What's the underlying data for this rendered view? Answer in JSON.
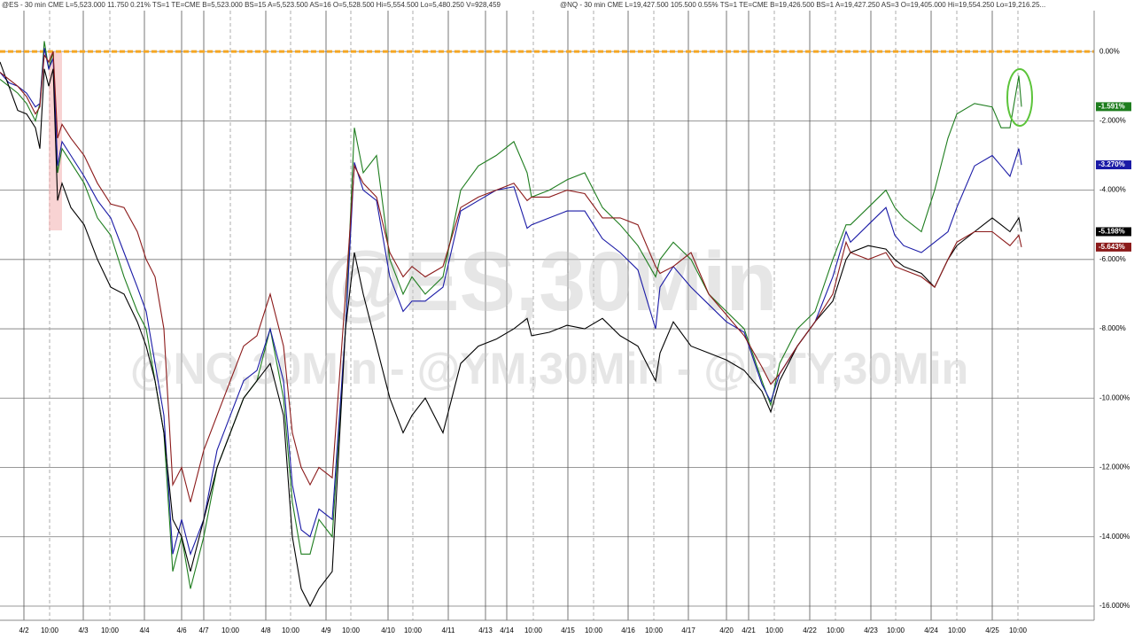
{
  "header": [
    "@ES - 30 min  CME  L=5,523.000  11.750  0.21%  TS=1  TE=CME  B=5,523.000  BS=15  A=5,523.500  AS=16  O=5,528.500  Hi=5,554.500  Lo=5,480.250  V=928,459",
    "@NQ - 30 min  CME  L=19,427.500  105.500  0.55%  TS=1  TE=CME  B=19,426.500  BS=1  A=19,427.250  AS=3  O=19,405.000  Hi=19,554.250  Lo=19,216.25..."
  ],
  "chart_data": {
    "type": "line",
    "watermarks": [
      "@ES,30Min",
      "@NQ,30Min - @YM,30Min - @RTY,30Min"
    ],
    "x": [
      0,
      10,
      20,
      30,
      40,
      45,
      50,
      55,
      60,
      65,
      70,
      80,
      95,
      110,
      125,
      140,
      155,
      165,
      175,
      185,
      195,
      205,
      215,
      230,
      245,
      260,
      275,
      290,
      305,
      320,
      330,
      340,
      350,
      360,
      375,
      390,
      400,
      410,
      425,
      440,
      455,
      465,
      480,
      500,
      520,
      540,
      560,
      580,
      595,
      600,
      620,
      640,
      660,
      680,
      700,
      720,
      740,
      745,
      760,
      780,
      800,
      820,
      840,
      860,
      870,
      880,
      900,
      920,
      940,
      955,
      960,
      980,
      1000,
      1010,
      1020,
      1040,
      1055,
      1070,
      1080,
      1100,
      1120,
      1130,
      1140,
      1150,
      1153
    ],
    "xlim": [
      0,
      1235
    ],
    "xticks": [
      {
        "value": 27,
        "label": "4/2"
      },
      {
        "value": 56,
        "label": "10:00"
      },
      {
        "value": 94,
        "label": "4/3"
      },
      {
        "value": 124,
        "label": "10:00"
      },
      {
        "value": 163,
        "label": "4/4"
      },
      {
        "value": 205,
        "label": "4/6"
      },
      {
        "value": 230,
        "label": "4/7"
      },
      {
        "value": 260,
        "label": "10:00"
      },
      {
        "value": 300,
        "label": "4/8"
      },
      {
        "value": 328,
        "label": "10:00"
      },
      {
        "value": 368,
        "label": "4/9"
      },
      {
        "value": 396,
        "label": "10:00"
      },
      {
        "value": 438,
        "label": "4/10"
      },
      {
        "value": 466,
        "label": "10:00"
      },
      {
        "value": 506,
        "label": "4/11"
      },
      {
        "value": 548,
        "label": "4/13"
      },
      {
        "value": 572,
        "label": "4/14"
      },
      {
        "value": 602,
        "label": "10:00"
      },
      {
        "value": 641,
        "label": "4/15"
      },
      {
        "value": 670,
        "label": "10:00"
      },
      {
        "value": 709,
        "label": "4/16"
      },
      {
        "value": 738,
        "label": "10:00"
      },
      {
        "value": 777,
        "label": "4/17"
      },
      {
        "value": 820,
        "label": "4/20"
      },
      {
        "value": 845,
        "label": "4/21"
      },
      {
        "value": 874,
        "label": "10:00"
      },
      {
        "value": 914,
        "label": "4/22"
      },
      {
        "value": 943,
        "label": "10:00"
      },
      {
        "value": 983,
        "label": "4/23"
      },
      {
        "value": 1011,
        "label": "10:00"
      },
      {
        "value": 1051,
        "label": "4/24"
      },
      {
        "value": 1080,
        "label": "10:00"
      },
      {
        "value": 1120,
        "label": "4/25"
      },
      {
        "value": 1149,
        "label": "10:00"
      }
    ],
    "ylim": [
      -16.41,
      1.18
    ],
    "yticks": [
      {
        "value": 0,
        "label": "0.00%"
      },
      {
        "value": -2,
        "label": "-2.000%"
      },
      {
        "value": -4,
        "label": "-4.000%"
      },
      {
        "value": -6,
        "label": "-6.000%"
      },
      {
        "value": -8,
        "label": "-8.000%"
      },
      {
        "value": -10,
        "label": "-10.000%"
      },
      {
        "value": -12,
        "label": "-12.000%"
      },
      {
        "value": -14,
        "label": "-14.000%"
      },
      {
        "value": -16,
        "label": "-16.000%"
      }
    ],
    "grid": true,
    "reference_line": {
      "value": 0,
      "color": "#f5a623"
    },
    "series": [
      {
        "color": "#1e7d1e",
        "values": [
          -0.8,
          -1.0,
          -1.2,
          -1.5,
          -2.0,
          -1.5,
          0.3,
          -0.5,
          0,
          -3.5,
          -2.8,
          -3.2,
          -3.8,
          -4.8,
          -5.3,
          -6.5,
          -7.5,
          -8.0,
          -9.5,
          -11,
          -15,
          -14,
          -15.5,
          -14,
          -12,
          -11,
          -10,
          -9.5,
          -8,
          -10,
          -13,
          -14.5,
          -14.5,
          -13.5,
          -14,
          -8,
          -2.2,
          -3.5,
          -3,
          -6,
          -7,
          -6.5,
          -7,
          -6.5,
          -4,
          -3.3,
          -3.0,
          -2.6,
          -3.5,
          -4.2,
          -4.0,
          -3.7,
          -3.5,
          -4.5,
          -5,
          -5.6,
          -6.5,
          -6,
          -5.5,
          -6,
          -7,
          -7.5,
          -8,
          -9.5,
          -10.2,
          -9,
          -8,
          -7.5,
          -6,
          -5,
          -5,
          -4.5,
          -4,
          -4.5,
          -4.8,
          -5.2,
          -4,
          -2.5,
          -1.8,
          -1.5,
          -1.6,
          -2.2,
          -2.2,
          -0.7,
          -1.591
        ],
        "value_labels": [
          null,
          null,
          null,
          null,
          null,
          null,
          null,
          null,
          null,
          null,
          null,
          null,
          null,
          null,
          null,
          null,
          null,
          null,
          null,
          null,
          null,
          null,
          null,
          null,
          null,
          null,
          null,
          null,
          null,
          null,
          null,
          null,
          null,
          null,
          null,
          null,
          null,
          null,
          null,
          null,
          null,
          null,
          null,
          null,
          null,
          null,
          null,
          null,
          null,
          null,
          null,
          null,
          null,
          null,
          null,
          null,
          null,
          null,
          null,
          null,
          null,
          null,
          null,
          null,
          null,
          null,
          null,
          null,
          null,
          null,
          null,
          null,
          null,
          null,
          null,
          null,
          null,
          null,
          null,
          null,
          null,
          null,
          null,
          null,
          "-1.591%"
        ]
      },
      {
        "color": "#1a1aa6",
        "values": [
          -0.6,
          -0.9,
          -1.0,
          -1.2,
          -1.6,
          -1.5,
          0.1,
          -0.5,
          -0.2,
          -3.3,
          -2.6,
          -3.0,
          -3.6,
          -4.3,
          -4.8,
          -5.8,
          -6.8,
          -7.5,
          -9.0,
          -10.5,
          -14.5,
          -13.5,
          -14.5,
          -13.5,
          -11.5,
          -10.5,
          -9.5,
          -9.2,
          -8.0,
          -9.5,
          -12.5,
          -13.8,
          -14.0,
          -13.2,
          -13.5,
          -8,
          -3.2,
          -4.0,
          -4.3,
          -6.5,
          -7.5,
          -7.2,
          -7.2,
          -6.8,
          -4.6,
          -4.3,
          -4.0,
          -3.9,
          -5.1,
          -5.0,
          -4.8,
          -4.6,
          -4.6,
          -5.4,
          -5.8,
          -6.3,
          -8.0,
          -6.8,
          -6.2,
          -6.8,
          -7.3,
          -7.8,
          -8.1,
          -9.6,
          -10.1,
          -9.3,
          -8.5,
          -7.8,
          -6.5,
          -5.2,
          -5.5,
          -5.0,
          -4.5,
          -5.3,
          -5.6,
          -5.8,
          -5.5,
          -5.2,
          -4.5,
          -3.3,
          -3.0,
          -3.3,
          -3.6,
          -2.8,
          -3.27
        ],
        "value_labels": [
          null,
          null,
          null,
          null,
          null,
          null,
          null,
          null,
          null,
          null,
          null,
          null,
          null,
          null,
          null,
          null,
          null,
          null,
          null,
          null,
          null,
          null,
          null,
          null,
          null,
          null,
          null,
          null,
          null,
          null,
          null,
          null,
          null,
          null,
          null,
          null,
          null,
          null,
          null,
          null,
          null,
          null,
          null,
          null,
          null,
          null,
          null,
          null,
          null,
          null,
          null,
          null,
          null,
          null,
          null,
          null,
          null,
          null,
          null,
          null,
          null,
          null,
          null,
          null,
          null,
          null,
          null,
          null,
          null,
          null,
          null,
          null,
          null,
          null,
          null,
          null,
          null,
          null,
          null,
          null,
          null,
          null,
          null,
          null,
          "-3.270%"
        ]
      },
      {
        "color": "#000000",
        "values": [
          -0.3,
          -1.0,
          -1.7,
          -1.8,
          -2.2,
          -2.8,
          -0.5,
          -1.0,
          -0.5,
          -4.3,
          -3.8,
          -4.5,
          -5.0,
          -6.0,
          -6.8,
          -7.0,
          -7.8,
          -8.5,
          -9.5,
          -11.0,
          -13.5,
          -14,
          -15,
          -13.5,
          -12,
          -11,
          -10,
          -9.5,
          -9,
          -10.5,
          -14,
          -15.5,
          -16,
          -15.5,
          -15,
          -8,
          -5.8,
          -7,
          -8.5,
          -10,
          -11,
          -10.5,
          -10,
          -11,
          -9,
          -8.5,
          -8.3,
          -8.0,
          -7.7,
          -8.2,
          -8.1,
          -7.9,
          -8,
          -7.7,
          -8.2,
          -8.5,
          -9.5,
          -8.7,
          -7.8,
          -8.5,
          -8.7,
          -8.9,
          -9.2,
          -9.8,
          -10.4,
          -9.5,
          -8.5,
          -7.8,
          -7.2,
          -6.0,
          -5.8,
          -5.6,
          -5.7,
          -6.0,
          -6.2,
          -6.4,
          -6.8,
          -6.0,
          -5.6,
          -5.2,
          -4.8,
          -5.0,
          -5.2,
          -4.8,
          -5.198
        ],
        "value_labels": [
          null,
          null,
          null,
          null,
          null,
          null,
          null,
          null,
          null,
          null,
          null,
          null,
          null,
          null,
          null,
          null,
          null,
          null,
          null,
          null,
          null,
          null,
          null,
          null,
          null,
          null,
          null,
          null,
          null,
          null,
          null,
          null,
          null,
          null,
          null,
          null,
          null,
          null,
          null,
          null,
          null,
          null,
          null,
          null,
          null,
          null,
          null,
          null,
          null,
          null,
          null,
          null,
          null,
          null,
          null,
          null,
          null,
          null,
          null,
          null,
          null,
          null,
          null,
          null,
          null,
          null,
          null,
          null,
          null,
          null,
          null,
          null,
          null,
          null,
          null,
          null,
          null,
          null,
          null,
          null,
          null,
          null,
          null,
          null,
          "-5.198%"
        ]
      },
      {
        "color": "#8b1a1a",
        "values": [
          -0.6,
          -0.8,
          -1.0,
          -1.3,
          -1.8,
          -1.6,
          -0.1,
          -0.3,
          0,
          -2.5,
          -2.1,
          -2.5,
          -3.0,
          -3.8,
          -4.4,
          -4.5,
          -5.2,
          -6.0,
          -6.5,
          -8,
          -12.5,
          -12,
          -13,
          -11.5,
          -10.5,
          -9.5,
          -8.5,
          -8.2,
          -7.0,
          -8.5,
          -11,
          -12,
          -12.5,
          -12,
          -12.3,
          -7,
          -3.3,
          -3.8,
          -4.2,
          -5.8,
          -6.5,
          -6.2,
          -6.5,
          -6.2,
          -4.5,
          -4.2,
          -4.0,
          -3.8,
          -4.3,
          -4.2,
          -4.2,
          -4.0,
          -4.1,
          -4.8,
          -4.8,
          -5,
          -6.2,
          -6.4,
          -6.2,
          -5.8,
          -7,
          -7.6,
          -8.2,
          -9.1,
          -9.6,
          -9.3,
          -8.5,
          -7.8,
          -7.0,
          -5.5,
          -5.8,
          -6.0,
          -5.8,
          -6.2,
          -6.3,
          -6.5,
          -6.8,
          -6.0,
          -5.5,
          -5.2,
          -5.2,
          -5.4,
          -5.6,
          -5.3,
          -5.643
        ],
        "value_labels": [
          null,
          null,
          null,
          null,
          null,
          null,
          null,
          null,
          null,
          null,
          null,
          null,
          null,
          null,
          null,
          null,
          null,
          null,
          null,
          null,
          null,
          null,
          null,
          null,
          null,
          null,
          null,
          null,
          null,
          null,
          null,
          null,
          null,
          null,
          null,
          null,
          null,
          null,
          null,
          null,
          null,
          null,
          null,
          null,
          null,
          null,
          null,
          null,
          null,
          null,
          null,
          null,
          null,
          null,
          null,
          null,
          null,
          null,
          null,
          null,
          null,
          null,
          null,
          null,
          null,
          null,
          null,
          null,
          null,
          null,
          null,
          null,
          null,
          null,
          null,
          null,
          null,
          null,
          null,
          null,
          null,
          null,
          null,
          null,
          "-5.643%"
        ]
      }
    ]
  }
}
